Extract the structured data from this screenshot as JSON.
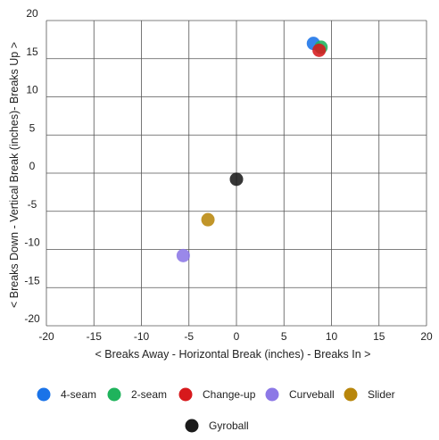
{
  "chart_data": {
    "type": "scatter",
    "xlabel": "< Breaks Away - Horizontal Break (inches) - Breaks In >",
    "ylabel": "< Breaks Down - Vertical Break (inches)- Breaks Up >",
    "xlim": [
      -20,
      20
    ],
    "ylim": [
      -20,
      20
    ],
    "x_ticks": [
      "-20",
      "-15",
      "-10",
      "-5",
      "0",
      "5",
      "10",
      "15",
      "20"
    ],
    "y_ticks": [
      "20",
      "15",
      "10",
      "5",
      "0",
      "-5",
      "-10",
      "-15",
      "-20"
    ],
    "x_tick_values": [
      -20,
      -15,
      -10,
      -5,
      0,
      5,
      10,
      15,
      20
    ],
    "y_tick_values": [
      20,
      15,
      10,
      5,
      0,
      -5,
      -10,
      -15,
      -20
    ],
    "grid": true,
    "legend_position": "bottom",
    "series": [
      {
        "name": "4-seam",
        "color": "#1a73e8",
        "x": 8.1,
        "y": 17.0
      },
      {
        "name": "2-seam",
        "color": "#1fb35c",
        "x": 8.9,
        "y": 16.5
      },
      {
        "name": "Change-up",
        "color": "#d7191c",
        "x": 8.7,
        "y": 16.1
      },
      {
        "name": "Curveball",
        "color": "#8c78e6",
        "x": -5.6,
        "y": -10.8
      },
      {
        "name": "Slider",
        "color": "#b8860b",
        "x": -3.0,
        "y": -6.1
      },
      {
        "name": "Gyroball",
        "color": "#1a1a1a",
        "x": 0.0,
        "y": -0.8
      }
    ]
  }
}
